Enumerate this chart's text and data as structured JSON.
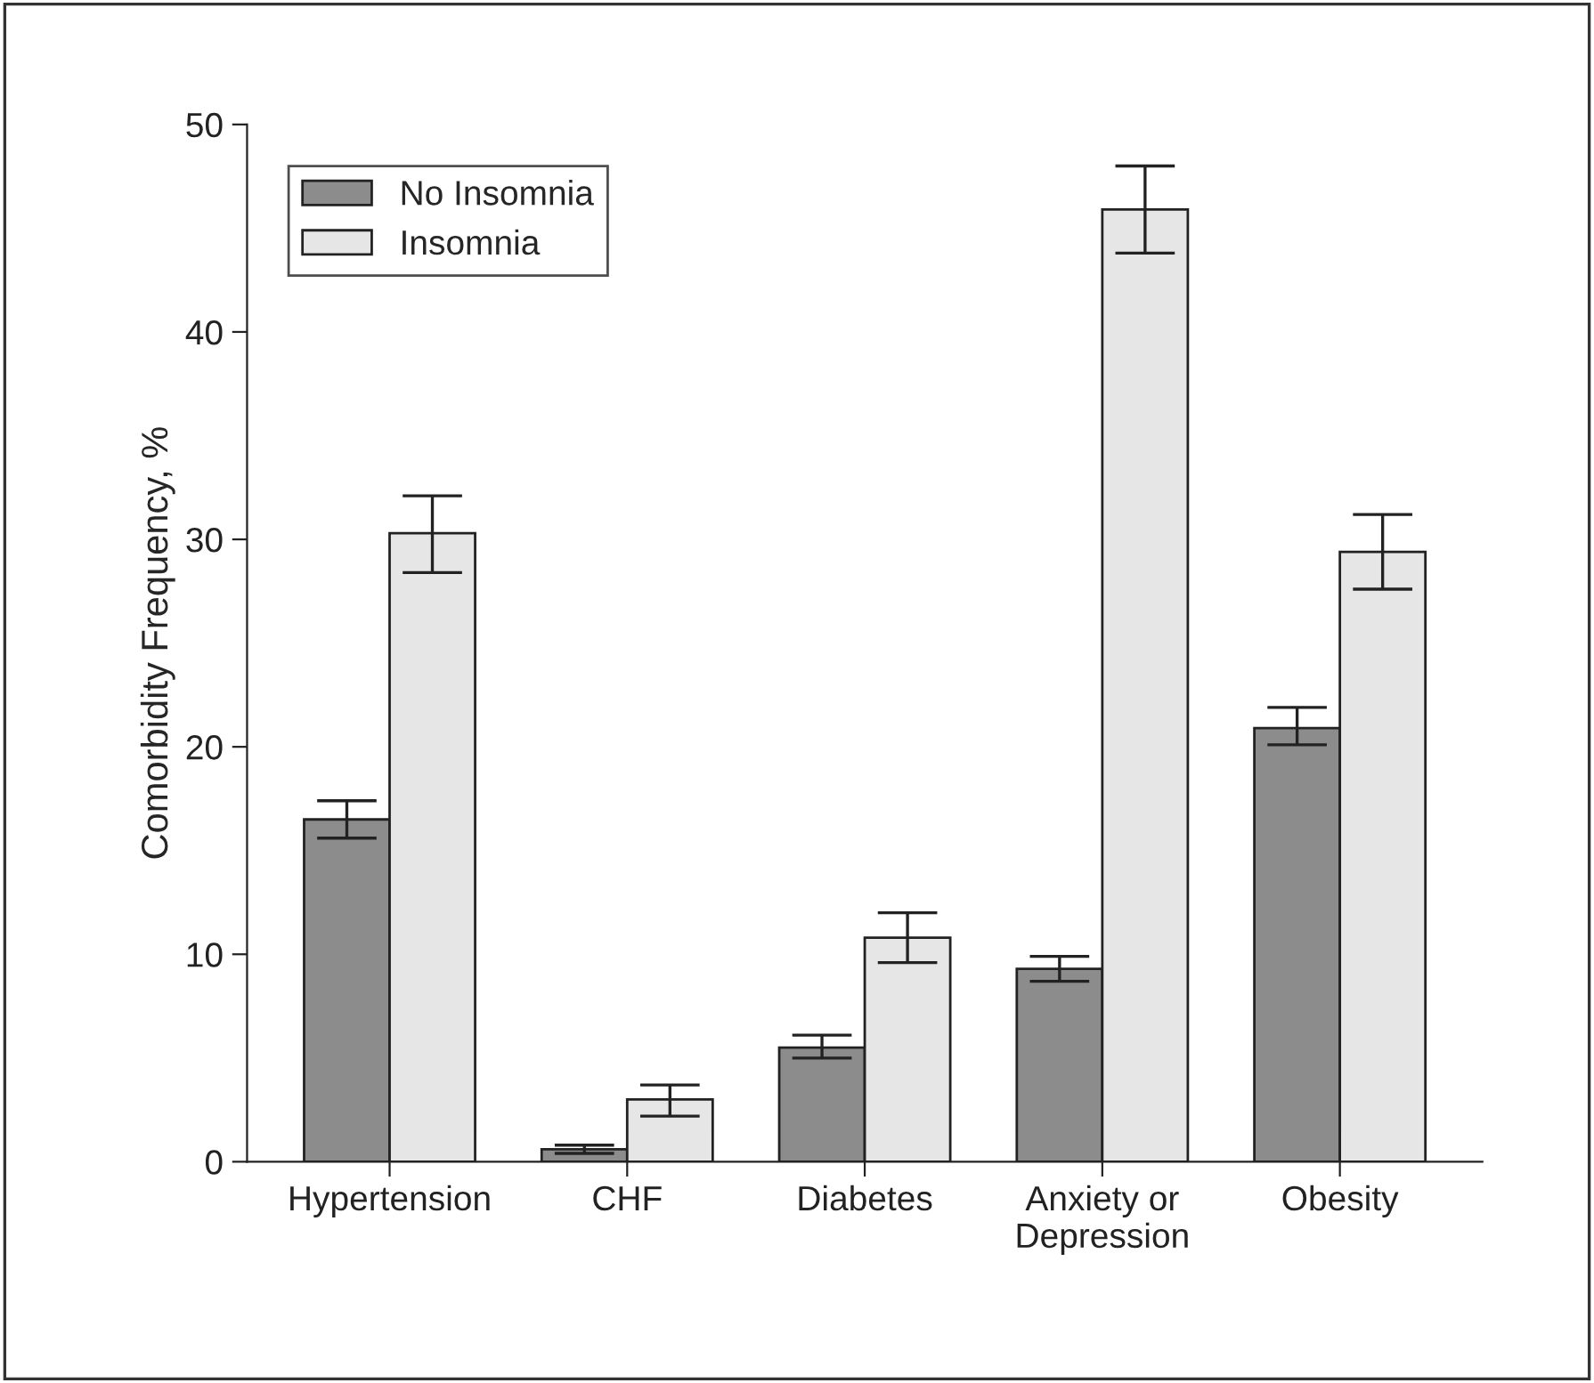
{
  "chart_data": {
    "type": "bar",
    "ylabel": "Comorbidity Frequency, %",
    "categories": [
      "Hypertension",
      "CHF",
      "Diabetes",
      "Anxiety or\nDepression",
      "Obesity"
    ],
    "series": [
      {
        "name": "No Insomnia",
        "color": "#8c8c8c",
        "values": [
          16.5,
          0.6,
          5.5,
          9.3,
          20.9
        ],
        "errors": [
          [
            15.6,
            17.4
          ],
          [
            0.4,
            0.8
          ],
          [
            5.0,
            6.1
          ],
          [
            8.7,
            9.9
          ],
          [
            20.1,
            21.9
          ]
        ]
      },
      {
        "name": "Insomnia",
        "color": "#e6e6e6",
        "values": [
          30.3,
          3.0,
          10.8,
          45.9,
          29.4
        ],
        "errors": [
          [
            28.4,
            32.1
          ],
          [
            2.2,
            3.7
          ],
          [
            9.6,
            12.0
          ],
          [
            43.8,
            48.0
          ],
          [
            27.6,
            31.2
          ]
        ]
      }
    ],
    "ylim": [
      0,
      50
    ],
    "yticks": [
      0,
      10,
      20,
      30,
      40,
      50
    ],
    "grid": false,
    "legend": "top left"
  }
}
